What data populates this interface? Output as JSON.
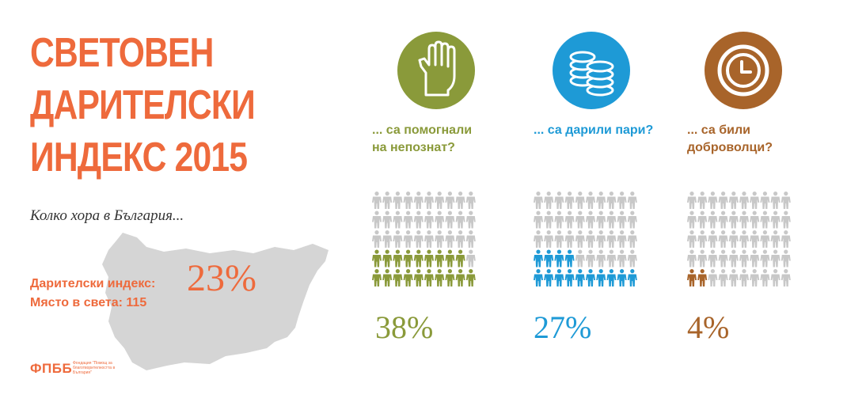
{
  "title_lines": [
    "СВЕТОВЕН",
    "ДАРИТЕЛСКИ",
    "ИНДЕКС 2015"
  ],
  "subtitle": "Колко хора в България...",
  "giving_index_label": "Дарителски индекс:",
  "giving_index_value": "23%",
  "rank_line": "Място в света: 115",
  "logo": {
    "abbr": "ФПББ",
    "full_name": "Фондация \"Помощ за благотворителността в България\""
  },
  "colors": {
    "accent": "#ee6a3c",
    "green": "#8a9a3a",
    "blue": "#1e9ad6",
    "brown": "#a8642a",
    "grey": "#c8c8c8"
  },
  "stats": [
    {
      "question_lines": [
        "... са помогнали",
        "на непознат?"
      ],
      "percent_label": "38%",
      "percent": 38,
      "icon": "hand-icon",
      "color": "#8a9a3a"
    },
    {
      "question_lines": [
        "... са дарили пари?"
      ],
      "percent_label": "27%",
      "percent": 27,
      "icon": "coins-icon",
      "color": "#1e9ad6"
    },
    {
      "question_lines": [
        "... са били",
        "доброволци?"
      ],
      "percent_label": "4%",
      "percent": 4,
      "icon": "clock-icon",
      "color": "#a8642a"
    }
  ]
}
